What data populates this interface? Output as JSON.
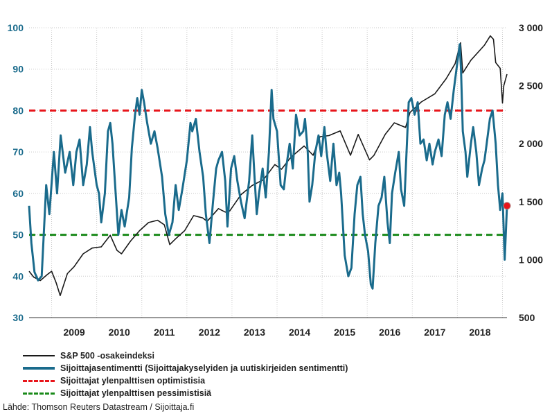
{
  "chart_data": {
    "type": "line",
    "title": "",
    "x_range": [
      2008.5,
      2019.1
    ],
    "x_ticks": [
      "2009",
      "2010",
      "2011",
      "2012",
      "2013",
      "2014",
      "2015",
      "2016",
      "2017",
      "2018"
    ],
    "y_left": {
      "range": [
        30,
        100
      ],
      "ticks": [
        "30",
        "40",
        "50",
        "60",
        "70",
        "80",
        "90",
        "100"
      ],
      "color": "#1a6b8c"
    },
    "y_right": {
      "range": [
        500,
        3000
      ],
      "ticks": [
        "500",
        "1 000",
        "1 500",
        "2 000",
        "2 500",
        "3 000"
      ],
      "color": "#222222"
    },
    "grid": true,
    "legend_position": "bottom",
    "series": [
      {
        "name": "S&P 500 -osakeindeksi",
        "axis": "right",
        "color": "#1a1a1a",
        "points": [
          [
            2008.5,
            900
          ],
          [
            2008.6,
            850
          ],
          [
            2008.75,
            820
          ],
          [
            2008.9,
            870
          ],
          [
            2009.0,
            900
          ],
          [
            2009.1,
            800
          ],
          [
            2009.19,
            690
          ],
          [
            2009.35,
            880
          ],
          [
            2009.5,
            940
          ],
          [
            2009.7,
            1050
          ],
          [
            2009.9,
            1100
          ],
          [
            2010.1,
            1110
          ],
          [
            2010.3,
            1210
          ],
          [
            2010.45,
            1080
          ],
          [
            2010.55,
            1050
          ],
          [
            2010.75,
            1160
          ],
          [
            2010.95,
            1250
          ],
          [
            2011.15,
            1320
          ],
          [
            2011.35,
            1340
          ],
          [
            2011.5,
            1300
          ],
          [
            2011.62,
            1130
          ],
          [
            2011.75,
            1180
          ],
          [
            2011.95,
            1250
          ],
          [
            2012.15,
            1380
          ],
          [
            2012.35,
            1360
          ],
          [
            2012.45,
            1330
          ],
          [
            2012.7,
            1440
          ],
          [
            2012.85,
            1410
          ],
          [
            2012.95,
            1420
          ],
          [
            2013.2,
            1560
          ],
          [
            2013.45,
            1640
          ],
          [
            2013.7,
            1690
          ],
          [
            2013.95,
            1820
          ],
          [
            2014.1,
            1780
          ],
          [
            2014.3,
            1880
          ],
          [
            2014.6,
            1980
          ],
          [
            2014.8,
            1900
          ],
          [
            2014.95,
            2060
          ],
          [
            2015.15,
            2070
          ],
          [
            2015.4,
            2110
          ],
          [
            2015.63,
            1900
          ],
          [
            2015.8,
            2080
          ],
          [
            2016.05,
            1860
          ],
          [
            2016.15,
            1900
          ],
          [
            2016.4,
            2080
          ],
          [
            2016.6,
            2180
          ],
          [
            2016.85,
            2140
          ],
          [
            2016.95,
            2270
          ],
          [
            2017.2,
            2360
          ],
          [
            2017.5,
            2430
          ],
          [
            2017.75,
            2560
          ],
          [
            2017.95,
            2690
          ],
          [
            2018.07,
            2870
          ],
          [
            2018.12,
            2610
          ],
          [
            2018.3,
            2720
          ],
          [
            2018.6,
            2850
          ],
          [
            2018.73,
            2930
          ],
          [
            2018.8,
            2900
          ],
          [
            2018.85,
            2700
          ],
          [
            2018.95,
            2650
          ],
          [
            2019.0,
            2350
          ],
          [
            2019.03,
            2500
          ],
          [
            2019.1,
            2600
          ]
        ]
      },
      {
        "name": "Sijoittajasentimentti (Sijoittajakyselyiden ja uutiskirjeiden sentimentti)",
        "axis": "left",
        "color": "#1a6b8c",
        "points": [
          [
            2008.5,
            57
          ],
          [
            2008.55,
            48
          ],
          [
            2008.62,
            41
          ],
          [
            2008.7,
            39
          ],
          [
            2008.78,
            40
          ],
          [
            2008.88,
            62
          ],
          [
            2008.95,
            55
          ],
          [
            2009.05,
            70
          ],
          [
            2009.12,
            60
          ],
          [
            2009.2,
            74
          ],
          [
            2009.3,
            65
          ],
          [
            2009.4,
            70
          ],
          [
            2009.48,
            62
          ],
          [
            2009.55,
            70
          ],
          [
            2009.62,
            73
          ],
          [
            2009.7,
            62
          ],
          [
            2009.78,
            67
          ],
          [
            2009.85,
            76
          ],
          [
            2009.9,
            70
          ],
          [
            2010.0,
            62
          ],
          [
            2010.05,
            60
          ],
          [
            2010.1,
            53
          ],
          [
            2010.18,
            60
          ],
          [
            2010.25,
            75
          ],
          [
            2010.3,
            77
          ],
          [
            2010.35,
            72
          ],
          [
            2010.42,
            60
          ],
          [
            2010.48,
            50
          ],
          [
            2010.55,
            56
          ],
          [
            2010.62,
            52
          ],
          [
            2010.72,
            59
          ],
          [
            2010.78,
            71
          ],
          [
            2010.85,
            79
          ],
          [
            2010.9,
            83
          ],
          [
            2010.95,
            79
          ],
          [
            2011.0,
            85
          ],
          [
            2011.05,
            82
          ],
          [
            2011.12,
            77
          ],
          [
            2011.2,
            72
          ],
          [
            2011.28,
            75
          ],
          [
            2011.35,
            71
          ],
          [
            2011.45,
            64
          ],
          [
            2011.52,
            55
          ],
          [
            2011.6,
            50
          ],
          [
            2011.68,
            53
          ],
          [
            2011.75,
            62
          ],
          [
            2011.82,
            56
          ],
          [
            2011.9,
            61
          ],
          [
            2012.0,
            68
          ],
          [
            2012.08,
            77
          ],
          [
            2012.12,
            75
          ],
          [
            2012.2,
            78
          ],
          [
            2012.28,
            70
          ],
          [
            2012.36,
            64
          ],
          [
            2012.42,
            55
          ],
          [
            2012.5,
            48
          ],
          [
            2012.58,
            58
          ],
          [
            2012.65,
            66
          ],
          [
            2012.7,
            68
          ],
          [
            2012.78,
            70
          ],
          [
            2012.85,
            63
          ],
          [
            2012.9,
            52
          ],
          [
            2012.98,
            66
          ],
          [
            2013.05,
            69
          ],
          [
            2013.12,
            63
          ],
          [
            2013.2,
            58
          ],
          [
            2013.28,
            54
          ],
          [
            2013.38,
            63
          ],
          [
            2013.45,
            74
          ],
          [
            2013.5,
            64
          ],
          [
            2013.55,
            55
          ],
          [
            2013.6,
            60
          ],
          [
            2013.68,
            66
          ],
          [
            2013.75,
            59
          ],
          [
            2013.82,
            70
          ],
          [
            2013.88,
            85
          ],
          [
            2013.92,
            78
          ],
          [
            2014.0,
            75
          ],
          [
            2014.08,
            62
          ],
          [
            2014.15,
            61
          ],
          [
            2014.2,
            66
          ],
          [
            2014.28,
            72
          ],
          [
            2014.35,
            66
          ],
          [
            2014.42,
            79
          ],
          [
            2014.5,
            74
          ],
          [
            2014.58,
            75
          ],
          [
            2014.62,
            78
          ],
          [
            2014.68,
            70
          ],
          [
            2014.72,
            58
          ],
          [
            2014.78,
            62
          ],
          [
            2014.85,
            70
          ],
          [
            2014.92,
            74
          ],
          [
            2014.98,
            69
          ],
          [
            2015.05,
            76
          ],
          [
            2015.1,
            70
          ],
          [
            2015.18,
            63
          ],
          [
            2015.25,
            72
          ],
          [
            2015.32,
            62
          ],
          [
            2015.38,
            65
          ],
          [
            2015.42,
            60
          ],
          [
            2015.5,
            45
          ],
          [
            2015.58,
            40
          ],
          [
            2015.65,
            42
          ],
          [
            2015.72,
            55
          ],
          [
            2015.78,
            62
          ],
          [
            2015.85,
            64
          ],
          [
            2015.9,
            55
          ],
          [
            2015.95,
            50
          ],
          [
            2016.02,
            46
          ],
          [
            2016.08,
            38
          ],
          [
            2016.12,
            37
          ],
          [
            2016.18,
            48
          ],
          [
            2016.25,
            57
          ],
          [
            2016.32,
            59
          ],
          [
            2016.38,
            64
          ],
          [
            2016.45,
            53
          ],
          [
            2016.5,
            48
          ],
          [
            2016.55,
            60
          ],
          [
            2016.62,
            65
          ],
          [
            2016.7,
            70
          ],
          [
            2016.75,
            61
          ],
          [
            2016.82,
            57
          ],
          [
            2016.88,
            72
          ],
          [
            2016.92,
            82
          ],
          [
            2016.98,
            83
          ],
          [
            2017.05,
            79
          ],
          [
            2017.12,
            82
          ],
          [
            2017.18,
            72
          ],
          [
            2017.25,
            73
          ],
          [
            2017.32,
            68
          ],
          [
            2017.38,
            72
          ],
          [
            2017.45,
            67
          ],
          [
            2017.5,
            70
          ],
          [
            2017.58,
            73
          ],
          [
            2017.65,
            69
          ],
          [
            2017.72,
            79
          ],
          [
            2017.78,
            82
          ],
          [
            2017.85,
            78
          ],
          [
            2017.92,
            85
          ],
          [
            2017.98,
            90
          ],
          [
            2018.05,
            96
          ],
          [
            2018.08,
            90
          ],
          [
            2018.12,
            75
          ],
          [
            2018.18,
            70
          ],
          [
            2018.22,
            64
          ],
          [
            2018.3,
            72
          ],
          [
            2018.35,
            76
          ],
          [
            2018.42,
            70
          ],
          [
            2018.48,
            62
          ],
          [
            2018.55,
            66
          ],
          [
            2018.6,
            68
          ],
          [
            2018.65,
            72
          ],
          [
            2018.72,
            78
          ],
          [
            2018.78,
            80
          ],
          [
            2018.85,
            72
          ],
          [
            2018.9,
            62
          ],
          [
            2018.95,
            56
          ],
          [
            2019.0,
            60
          ],
          [
            2019.05,
            44
          ],
          [
            2019.1,
            57
          ]
        ]
      }
    ],
    "reference_lines": [
      {
        "name": "Sijoittajat ylenpalttisen optimistisia",
        "axis": "left",
        "value": 80,
        "color": "#e8151b",
        "style": "dashed"
      },
      {
        "name": "Sijoittajat ylenpalttisen pessimistisiä",
        "axis": "left",
        "value": 50,
        "color": "#1a8a1a",
        "style": "dashed"
      }
    ],
    "marker": {
      "axis": "left",
      "x": 2019.1,
      "y": 57,
      "color": "#e8151b"
    }
  },
  "legend": [
    {
      "label": "S&P 500 -osakeindeksi",
      "color": "#1a1a1a",
      "style": "solid"
    },
    {
      "label": "Sijoittajasentimentti (Sijoittajakyselyiden ja uutiskirjeiden sentimentti)",
      "color": "#1a6b8c",
      "style": "solid"
    },
    {
      "label": "Sijoittajat ylenpalttisen optimistisia",
      "color": "#e8151b",
      "style": "dashed"
    },
    {
      "label": "Sijoittajat ylenpalttisen pessimistisiä",
      "color": "#1a8a1a",
      "style": "dashed"
    }
  ],
  "source_text": "Lähde: Thomson Reuters Datastream / Sijoittaja.fi"
}
